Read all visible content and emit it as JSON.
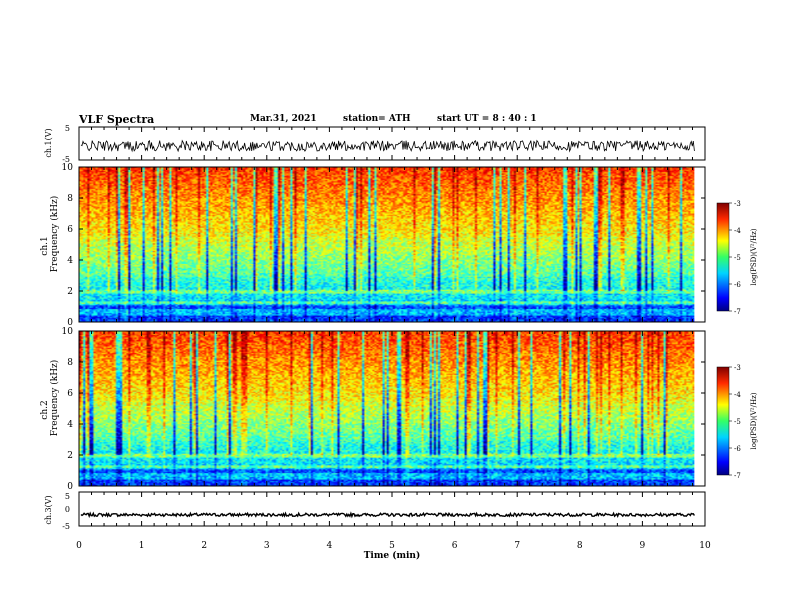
{
  "header": {
    "title": "VLF Spectra",
    "date": "Mar.31, 2021",
    "station": "station= ATH",
    "start_time": "start  UT =   8 : 40 : 1"
  },
  "chart_data": [
    {
      "id": "ch1_waveform",
      "type": "line",
      "ylabel": "ch.1(V)",
      "ylim": [
        -5,
        5
      ],
      "yticks": [
        "5",
        "-5"
      ],
      "xlim": [
        0,
        10
      ],
      "series": [
        {
          "values_summary": {
            "mean": -0.7,
            "min": -2.4,
            "max": 0.9
          }
        }
      ]
    },
    {
      "id": "ch1_spectrogram",
      "type": "heatmap",
      "channel_label": "ch.1",
      "ylabel": "Frequency (kHz)",
      "ylim": [
        0,
        10
      ],
      "yticks": [
        "0",
        "2",
        "4",
        "6",
        "8",
        "10"
      ],
      "xlim": [
        0,
        10
      ],
      "colorbar": {
        "label": "log(PSD)(V²/Hz)",
        "range": [
          -7,
          -3
        ],
        "ticks": [
          "-3",
          "-4",
          "-5",
          "-6",
          "-7"
        ]
      }
    },
    {
      "id": "ch2_spectrogram",
      "type": "heatmap",
      "channel_label": "ch.2",
      "ylabel": "Frequency (kHz)",
      "ylim": [
        0,
        10
      ],
      "yticks": [
        "0",
        "2",
        "4",
        "6",
        "8",
        "10"
      ],
      "xlim": [
        0,
        10
      ],
      "colorbar": {
        "label": "log(PSD)(V²/Hz)",
        "range": [
          -7,
          -3
        ],
        "ticks": [
          "-3",
          "-4",
          "-5",
          "-6",
          "-7"
        ]
      }
    },
    {
      "id": "ch3_waveform",
      "type": "line",
      "ylabel": "ch.3(V)",
      "ylim": [
        -5,
        5
      ],
      "yticks": [
        "5",
        "0",
        "-5"
      ],
      "xlim": [
        0,
        10
      ],
      "series": [
        {
          "values_summary": {
            "mean": -1.7,
            "min": -2.2,
            "max": -1.2
          }
        }
      ]
    }
  ],
  "xaxis": {
    "label": "Time (min)",
    "ticks": [
      "0",
      "1",
      "2",
      "3",
      "4",
      "5",
      "6",
      "7",
      "8",
      "9",
      "10"
    ],
    "data_end": 9.83
  },
  "colors": {
    "jet_low": "#00007f",
    "jet_mid": "#33ff33",
    "jet_high": "#7f0000"
  }
}
